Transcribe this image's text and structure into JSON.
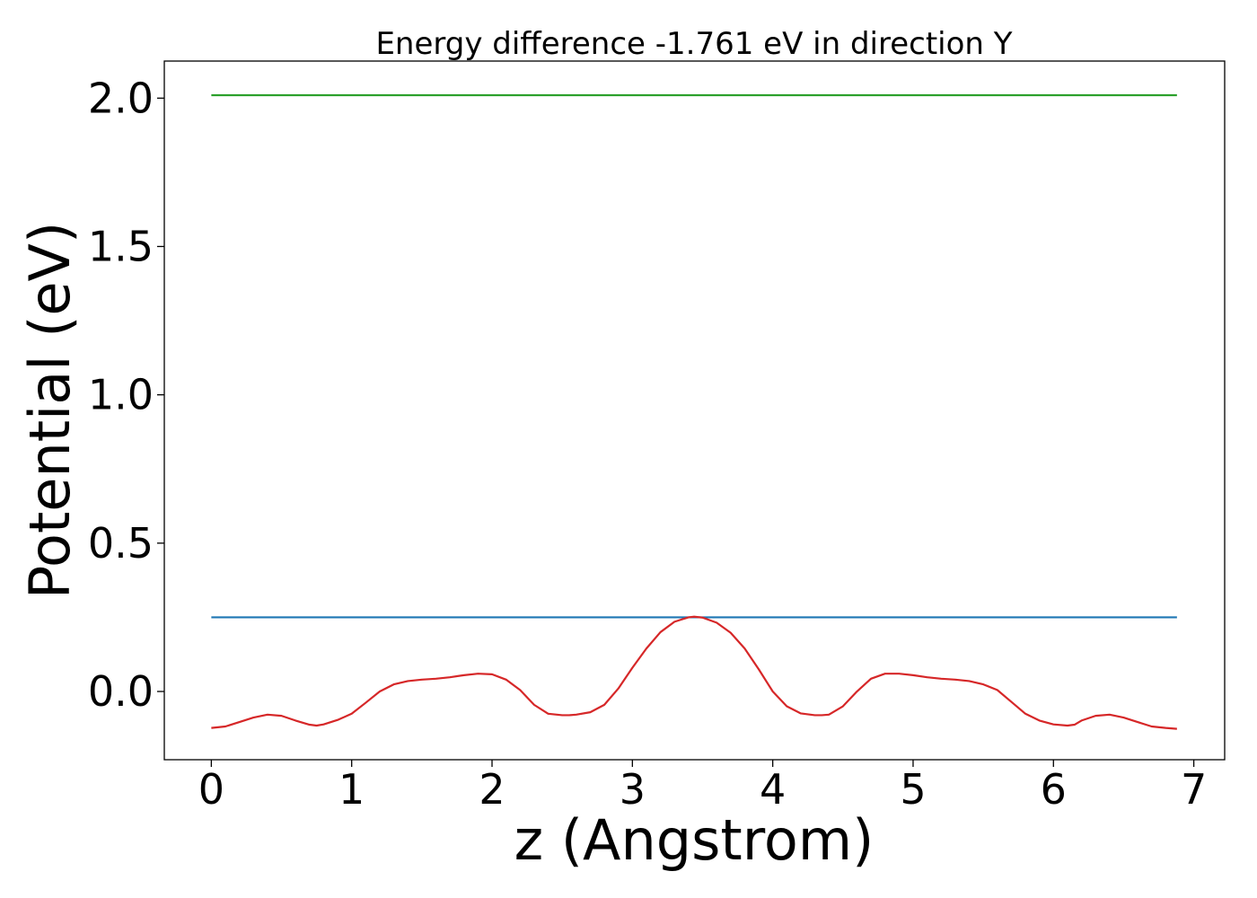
{
  "chart_data": {
    "type": "line",
    "title": "Energy difference -1.761 eV in direction Y",
    "xlabel": "z (Angstrom)",
    "ylabel": "Potential (eV)",
    "xlim": [
      -0.335,
      7.22
    ],
    "ylim": [
      -0.23,
      2.125
    ],
    "xticks": [
      0,
      1,
      2,
      3,
      4,
      5,
      6,
      7
    ],
    "xtick_labels": [
      "0",
      "1",
      "2",
      "3",
      "4",
      "5",
      "6",
      "7"
    ],
    "yticks": [
      0.0,
      0.5,
      1.0,
      1.5,
      2.0
    ],
    "ytick_labels": [
      "0.0",
      "0.5",
      "1.0",
      "1.5",
      "2.0"
    ],
    "grid": false,
    "series": [
      {
        "color": "#2ca02c",
        "x": [
          0,
          6.88
        ],
        "y": [
          2.01,
          2.01
        ]
      },
      {
        "color": "#1f77b4",
        "x": [
          0,
          6.88
        ],
        "y": [
          0.25,
          0.25
        ]
      },
      {
        "color": "#d62728",
        "x": [
          0.0,
          0.1,
          0.2,
          0.3,
          0.4,
          0.5,
          0.6,
          0.7,
          0.75,
          0.8,
          0.9,
          1.0,
          1.1,
          1.2,
          1.3,
          1.4,
          1.5,
          1.6,
          1.7,
          1.8,
          1.9,
          2.0,
          2.1,
          2.2,
          2.3,
          2.4,
          2.5,
          2.55,
          2.6,
          2.7,
          2.8,
          2.9,
          3.0,
          3.1,
          3.2,
          3.3,
          3.4,
          3.44,
          3.5,
          3.6,
          3.7,
          3.8,
          3.9,
          4.0,
          4.1,
          4.2,
          4.3,
          4.35,
          4.4,
          4.5,
          4.6,
          4.7,
          4.8,
          4.9,
          5.0,
          5.1,
          5.2,
          5.3,
          5.4,
          5.5,
          5.6,
          5.7,
          5.8,
          5.9,
          6.0,
          6.1,
          6.15,
          6.2,
          6.3,
          6.4,
          6.5,
          6.6,
          6.7,
          6.8,
          6.88
        ],
        "y": [
          -0.123,
          -0.118,
          -0.103,
          -0.088,
          -0.078,
          -0.082,
          -0.098,
          -0.112,
          -0.115,
          -0.111,
          -0.096,
          -0.075,
          -0.038,
          0.0,
          0.024,
          0.035,
          0.04,
          0.043,
          0.048,
          0.055,
          0.06,
          0.058,
          0.04,
          0.005,
          -0.045,
          -0.075,
          -0.08,
          -0.08,
          -0.078,
          -0.07,
          -0.045,
          0.01,
          0.08,
          0.145,
          0.2,
          0.235,
          0.25,
          0.252,
          0.249,
          0.232,
          0.198,
          0.145,
          0.075,
          0.0,
          -0.05,
          -0.074,
          -0.08,
          -0.08,
          -0.078,
          -0.05,
          0.0,
          0.043,
          0.06,
          0.06,
          0.055,
          0.048,
          0.043,
          0.04,
          0.035,
          0.024,
          0.005,
          -0.035,
          -0.075,
          -0.098,
          -0.111,
          -0.115,
          -0.112,
          -0.098,
          -0.082,
          -0.078,
          -0.088,
          -0.103,
          -0.118,
          -0.123,
          -0.126
        ]
      }
    ]
  }
}
